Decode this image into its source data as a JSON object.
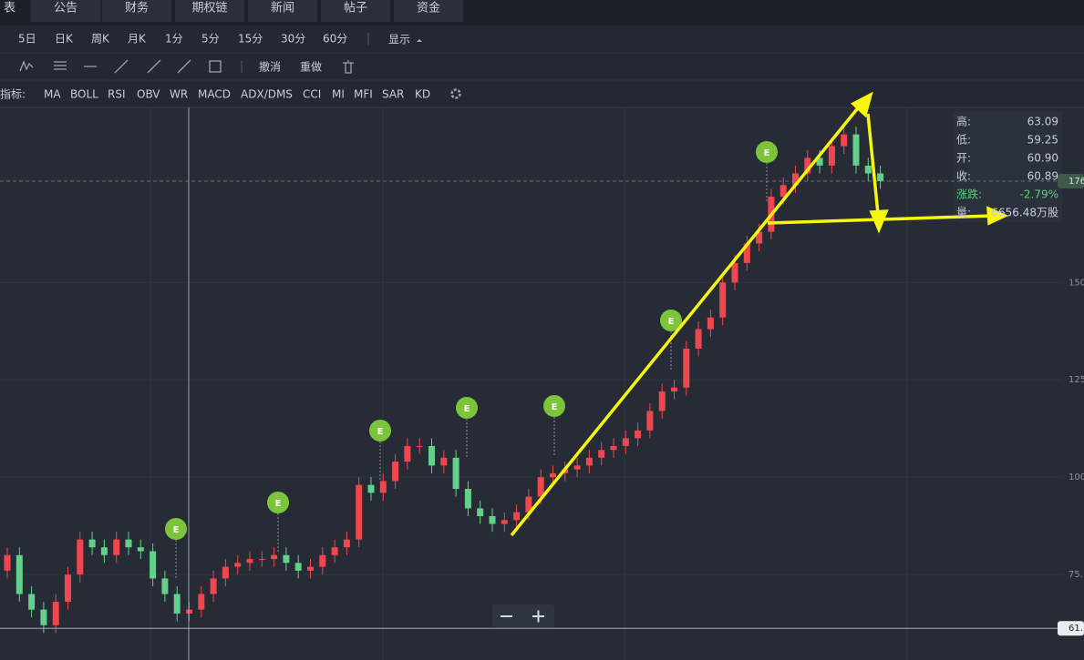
{
  "tabs": [
    "表",
    "公告",
    "财务",
    "期权链",
    "新闻",
    "帖子",
    "资金"
  ],
  "periods": [
    "5日",
    "日K",
    "周K",
    "月K",
    "1分",
    "5分",
    "15分",
    "30分",
    "60分"
  ],
  "display_menu": "显示",
  "tools": [
    "撤消",
    "重做"
  ],
  "indicator_label": "指标:",
  "indicators": [
    "MA",
    "BOLL",
    "RSI",
    "OBV",
    "WR",
    "MACD",
    "ADX/DMS",
    "CCI",
    "MI",
    "MFI",
    "SAR",
    "KD"
  ],
  "info": {
    "rows": [
      {
        "label": "高:",
        "value": "63.09"
      },
      {
        "label": "低:",
        "value": "59.25"
      },
      {
        "label": "开:",
        "value": "60.90"
      },
      {
        "label": "收:",
        "value": "60.89"
      },
      {
        "label": "涨跌:",
        "value": "-2.79%"
      },
      {
        "label": "量:",
        "value": "6656.48万股"
      }
    ]
  },
  "earnings_markers": [
    "E",
    "E",
    "E",
    "E",
    "E",
    "E",
    "E"
  ],
  "chart_data": {
    "type": "candlestick",
    "open": [
      76,
      80,
      70,
      66,
      62,
      68,
      75,
      84,
      82,
      80,
      84,
      82,
      81,
      74,
      70,
      65,
      66,
      70,
      74,
      77,
      78,
      79,
      79,
      80,
      78,
      76,
      77,
      80,
      82,
      84,
      98,
      96,
      99,
      104,
      108,
      108,
      103,
      105,
      97,
      92,
      90,
      88,
      89,
      91,
      95,
      100,
      101,
      102,
      103,
      105,
      107,
      108,
      110,
      112,
      117,
      122,
      123,
      133,
      138,
      141,
      150,
      155,
      160,
      163,
      172,
      175,
      178,
      182,
      180,
      185,
      188,
      180,
      178
    ],
    "high": [
      82,
      82,
      72,
      68,
      70,
      77,
      86,
      86,
      84,
      86,
      86,
      84,
      83,
      76,
      72,
      68,
      72,
      76,
      79,
      80,
      81,
      81,
      82,
      82,
      80,
      79,
      82,
      84,
      86,
      100,
      100,
      101,
      106,
      110,
      110,
      110,
      107,
      107,
      99,
      94,
      92,
      91,
      93,
      97,
      102,
      103,
      104,
      105,
      107,
      109,
      110,
      112,
      114,
      119,
      124,
      125,
      135,
      140,
      143,
      152,
      157,
      162,
      165,
      174,
      177,
      180,
      184,
      184,
      187,
      190,
      190,
      182,
      180
    ],
    "low": [
      74,
      68,
      64,
      60,
      60,
      66,
      73,
      80,
      78,
      78,
      80,
      79,
      72,
      68,
      63,
      63,
      64,
      68,
      72,
      75,
      76,
      77,
      77,
      76,
      74,
      74,
      75,
      78,
      80,
      82,
      94,
      94,
      97,
      102,
      106,
      101,
      101,
      95,
      90,
      88,
      86,
      86,
      87,
      89,
      93,
      98,
      99,
      100,
      101,
      103,
      105,
      106,
      108,
      110,
      115,
      120,
      121,
      131,
      136,
      139,
      148,
      153,
      158,
      161,
      170,
      173,
      176,
      178,
      178,
      183,
      178,
      176,
      174
    ],
    "close": [
      80,
      70,
      66,
      62,
      68,
      75,
      84,
      82,
      80,
      84,
      82,
      81,
      74,
      70,
      65,
      66,
      70,
      74,
      77,
      78,
      79,
      79,
      80,
      78,
      76,
      77,
      80,
      82,
      84,
      98,
      96,
      99,
      104,
      108,
      108,
      103,
      105,
      97,
      92,
      90,
      88,
      89,
      91,
      95,
      100,
      101,
      102,
      103,
      105,
      107,
      108,
      110,
      112,
      117,
      122,
      123,
      133,
      138,
      141,
      150,
      155,
      160,
      163,
      172,
      175,
      178,
      182,
      180,
      185,
      188,
      180,
      178,
      176
    ],
    "ylim": [
      54,
      194
    ],
    "yticks": [
      {
        "value": 75,
        "label": "75."
      },
      100,
      125,
      150
    ],
    "grid": true,
    "up_color": "#f0474f",
    "down_color": "#63d18b",
    "markers": [
      {
        "value": 176,
        "label": "176"
      },
      {
        "value": 61.2,
        "label": "61."
      }
    ]
  }
}
